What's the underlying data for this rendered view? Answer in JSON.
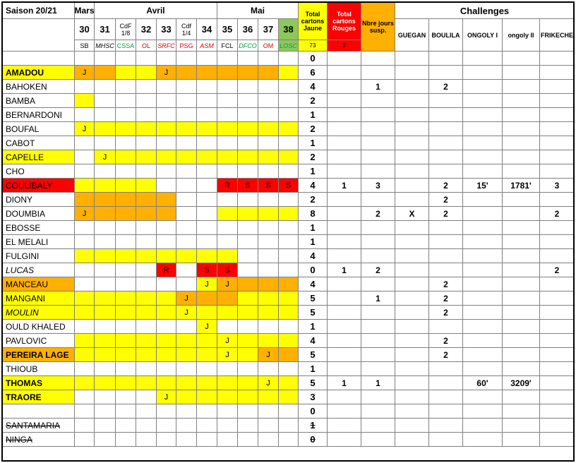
{
  "season_label": "Saison 20/21",
  "months": [
    {
      "label": "Mars",
      "color": "#000000"
    },
    {
      "label": "Avril",
      "color": "#000000"
    },
    {
      "label": "Mai",
      "color": "#000000"
    }
  ],
  "headers": {
    "total_jaune": "Total cartons Jaune",
    "total_rouge": "Total cartons Rouges",
    "jours_susp": "Nbre jours susp.",
    "challenges": "Challenges",
    "challenge_names": [
      "GUEGAN",
      "BOULILA",
      "ONGOLY I",
      "ongoly II",
      "FRIKECHE"
    ],
    "total_jaune_count": "73",
    "total_rouge_count": "3"
  },
  "matchdays": [
    {
      "num": "30",
      "opp": "SB",
      "opp_color": "#000000",
      "opp_italic": false
    },
    {
      "num": "31",
      "opp": "MHSC",
      "opp_color": "#000000",
      "opp_italic": true
    },
    {
      "num": "CdF 1/8",
      "opp": "CSSA",
      "opp_color": "#00A050",
      "opp_italic": false
    },
    {
      "num": "32",
      "opp": "OL",
      "opp_color": "#E00000",
      "opp_italic": false
    },
    {
      "num": "33",
      "opp": "SRFC",
      "opp_color": "#E00000",
      "opp_italic": true
    },
    {
      "num": "Cdf 1/4",
      "opp": "PSG",
      "opp_color": "#E00000",
      "opp_italic": false
    },
    {
      "num": "34",
      "opp": "ASM",
      "opp_color": "#E00000",
      "opp_italic": true
    },
    {
      "num": "35",
      "opp": "FCL",
      "opp_color": "#000000",
      "opp_italic": false
    },
    {
      "num": "36",
      "opp": "DFCO",
      "opp_color": "#00A050",
      "opp_italic": true
    },
    {
      "num": "37",
      "opp": "OM",
      "opp_color": "#E00000",
      "opp_italic": false
    },
    {
      "num": "38",
      "opp": "LOSC",
      "opp_color": "#00A050",
      "opp_italic": true
    }
  ],
  "colors": {
    "yellow": "#FFFF00",
    "orange": "#FFB000",
    "red": "#FF0000",
    "green": "#8DC85A",
    "white": "#FFFFFF"
  },
  "players": [
    {
      "name": "",
      "fill": "",
      "cells": [
        "",
        "",
        "",
        "",
        "",
        "",
        "",
        "",
        "",
        "",
        ""
      ],
      "marks": {},
      "jaune": "0",
      "rouge": "",
      "susp": "",
      "ch": [
        "",
        "",
        "",
        "",
        ""
      ]
    },
    {
      "name": "AMADOU",
      "fill": "yellow",
      "bold": true,
      "cells": [
        "orange",
        "orange",
        "yellow",
        "yellow",
        "orange",
        "orange",
        "orange",
        "orange",
        "orange",
        "orange",
        "yellow"
      ],
      "marks": {
        "0": "J",
        "4": "J"
      },
      "jaune": "6",
      "rouge": "",
      "susp": "",
      "ch": [
        "",
        "",
        "",
        "",
        ""
      ]
    },
    {
      "name": "BAHOKEN",
      "fill": "",
      "cells": [
        "",
        "",
        "",
        "",
        "",
        "",
        "",
        "",
        "",
        "",
        ""
      ],
      "marks": {},
      "jaune": "4",
      "rouge": "",
      "susp": "1",
      "ch": [
        "",
        "2",
        "",
        "",
        ""
      ]
    },
    {
      "name": "BAMBA",
      "fill": "",
      "cells": [
        "yellow",
        "",
        "",
        "",
        "",
        "",
        "",
        "",
        "",
        "",
        ""
      ],
      "marks": {},
      "jaune": "2",
      "rouge": "",
      "susp": "",
      "ch": [
        "",
        "",
        "",
        "",
        ""
      ]
    },
    {
      "name": "BERNARDONI",
      "fill": "",
      "cells": [
        "",
        "",
        "",
        "",
        "",
        "",
        "",
        "",
        "",
        "",
        ""
      ],
      "marks": {},
      "jaune": "1",
      "rouge": "",
      "susp": "",
      "ch": [
        "",
        "",
        "",
        "",
        ""
      ]
    },
    {
      "name": "BOUFAL",
      "fill": "",
      "cells": [
        "yellow",
        "yellow",
        "yellow",
        "yellow",
        "yellow",
        "yellow",
        "yellow",
        "yellow",
        "yellow",
        "yellow",
        "yellow"
      ],
      "marks": {
        "0": "J"
      },
      "jaune": "2",
      "rouge": "",
      "susp": "",
      "ch": [
        "",
        "",
        "",
        "",
        ""
      ]
    },
    {
      "name": "CABOT",
      "fill": "",
      "cells": [
        "",
        "",
        "",
        "",
        "",
        "",
        "",
        "",
        "",
        "",
        ""
      ],
      "marks": {},
      "jaune": "1",
      "rouge": "",
      "susp": "",
      "ch": [
        "",
        "",
        "",
        "",
        ""
      ]
    },
    {
      "name": "CAPELLE",
      "fill": "yellow",
      "cells": [
        "",
        "yellow",
        "yellow",
        "yellow",
        "yellow",
        "yellow",
        "yellow",
        "yellow",
        "yellow",
        "yellow",
        "yellow"
      ],
      "marks": {
        "1": "J"
      },
      "jaune": "2",
      "rouge": "",
      "susp": "",
      "ch": [
        "",
        "",
        "",
        "",
        ""
      ]
    },
    {
      "name": "CHO",
      "fill": "",
      "cells": [
        "",
        "",
        "",
        "",
        "",
        "",
        "",
        "",
        "",
        "",
        ""
      ],
      "marks": {},
      "jaune": "1",
      "rouge": "",
      "susp": "",
      "ch": [
        "",
        "",
        "",
        "",
        ""
      ]
    },
    {
      "name": "COULIBALY",
      "fill": "red",
      "cells": [
        "yellow",
        "yellow",
        "yellow",
        "yellow",
        "",
        "",
        "",
        "red",
        "red",
        "red",
        "red"
      ],
      "marks": {
        "7": "R",
        "8": "S",
        "9": "S",
        "10": "S"
      },
      "jaune": "4",
      "rouge": "1",
      "susp": "3",
      "ch": [
        "",
        "2",
        "15'",
        "1781'",
        "3"
      ]
    },
    {
      "name": "DIONY",
      "fill": "",
      "cells": [
        "orange",
        "orange",
        "orange",
        "orange",
        "orange",
        "",
        "",
        "",
        "",
        "",
        ""
      ],
      "marks": {},
      "jaune": "2",
      "rouge": "",
      "susp": "",
      "ch": [
        "",
        "2",
        "",
        "",
        ""
      ]
    },
    {
      "name": "DOUMBIA",
      "fill": "",
      "cells": [
        "orange",
        "orange",
        "orange",
        "orange",
        "orange",
        "",
        "",
        "yellow",
        "yellow",
        "yellow",
        "yellow"
      ],
      "marks": {
        "0": "J"
      },
      "jaune": "8",
      "rouge": "",
      "susp": "2",
      "ch": [
        "X",
        "2",
        "",
        "",
        "2"
      ]
    },
    {
      "name": "EBOSSE",
      "fill": "",
      "cells": [
        "",
        "",
        "",
        "",
        "",
        "",
        "",
        "",
        "",
        "",
        ""
      ],
      "marks": {},
      "jaune": "1",
      "rouge": "",
      "susp": "",
      "ch": [
        "",
        "",
        "",
        "",
        ""
      ]
    },
    {
      "name": "EL MELALI",
      "fill": "",
      "cells": [
        "",
        "",
        "",
        "",
        "",
        "",
        "",
        "",
        "",
        "",
        ""
      ],
      "marks": {},
      "jaune": "1",
      "rouge": "",
      "susp": "",
      "ch": [
        "",
        "",
        "",
        "",
        ""
      ]
    },
    {
      "name": "FULGINI",
      "fill": "",
      "cells": [
        "yellow",
        "yellow",
        "yellow",
        "yellow",
        "yellow",
        "yellow",
        "yellow",
        "yellow",
        "",
        "",
        ""
      ],
      "marks": {},
      "jaune": "4",
      "rouge": "",
      "susp": "",
      "ch": [
        "",
        "",
        "",
        "",
        ""
      ]
    },
    {
      "name": "LUCAS",
      "fill": "",
      "italic": true,
      "cells": [
        "",
        "",
        "",
        "",
        "red",
        "",
        "red",
        "red",
        "",
        "",
        ""
      ],
      "marks": {
        "4": "R",
        "6": "S",
        "7": "S"
      },
      "jaune": "0",
      "rouge": "1",
      "susp": "2",
      "ch": [
        "",
        "",
        "",
        "",
        "2"
      ]
    },
    {
      "name": "MANCEAU",
      "fill": "orange",
      "cells": [
        "",
        "",
        "",
        "",
        "",
        "",
        "yellow",
        "orange",
        "orange",
        "orange",
        "orange"
      ],
      "marks": {
        "6": "J",
        "7": "J"
      },
      "jaune": "4",
      "rouge": "",
      "susp": "",
      "ch": [
        "",
        "2",
        "",
        "",
        ""
      ]
    },
    {
      "name": "MANGANI",
      "fill": "yellow",
      "cells": [
        "yellow",
        "yellow",
        "yellow",
        "yellow",
        "yellow",
        "orange",
        "orange",
        "orange",
        "yellow",
        "yellow",
        "yellow"
      ],
      "marks": {
        "5": "J"
      },
      "jaune": "5",
      "rouge": "",
      "susp": "1",
      "ch": [
        "",
        "2",
        "",
        "",
        ""
      ]
    },
    {
      "name": "MOULIN",
      "fill": "yellow",
      "italic": true,
      "cells": [
        "yellow",
        "yellow",
        "yellow",
        "yellow",
        "yellow",
        "yellow",
        "yellow",
        "yellow",
        "yellow",
        "yellow",
        "yellow"
      ],
      "marks": {
        "5": "J"
      },
      "jaune": "5",
      "rouge": "",
      "susp": "",
      "ch": [
        "",
        "2",
        "",
        "",
        ""
      ]
    },
    {
      "name": "OULD KHALED",
      "fill": "",
      "cells": [
        "",
        "",
        "",
        "",
        "",
        "",
        "yellow",
        "",
        "",
        "",
        ""
      ],
      "marks": {
        "6": "J"
      },
      "jaune": "1",
      "rouge": "",
      "susp": "",
      "ch": [
        "",
        "",
        "",
        "",
        ""
      ]
    },
    {
      "name": "PAVLOVIC",
      "fill": "",
      "cells": [
        "yellow",
        "yellow",
        "yellow",
        "yellow",
        "yellow",
        "yellow",
        "yellow",
        "yellow",
        "yellow",
        "yellow",
        "yellow"
      ],
      "marks": {
        "7": "J"
      },
      "jaune": "4",
      "rouge": "",
      "susp": "",
      "ch": [
        "",
        "2",
        "",
        "",
        ""
      ]
    },
    {
      "name": "PEREIRA LAGE",
      "fill": "orange",
      "bold": true,
      "cells": [
        "yellow",
        "yellow",
        "yellow",
        "yellow",
        "yellow",
        "yellow",
        "yellow",
        "yellow",
        "yellow",
        "orange",
        "orange"
      ],
      "marks": {
        "7": "J",
        "9": "J"
      },
      "jaune": "5",
      "rouge": "",
      "susp": "",
      "ch": [
        "",
        "2",
        "",
        "",
        ""
      ]
    },
    {
      "name": "THIOUB",
      "fill": "",
      "cells": [
        "",
        "",
        "",
        "",
        "",
        "",
        "",
        "",
        "",
        "",
        ""
      ],
      "marks": {},
      "jaune": "1",
      "rouge": "",
      "susp": "",
      "ch": [
        "",
        "",
        "",
        "",
        ""
      ]
    },
    {
      "name": "THOMAS",
      "fill": "yellow",
      "bold": true,
      "cells": [
        "yellow",
        "yellow",
        "yellow",
        "yellow",
        "yellow",
        "yellow",
        "yellow",
        "yellow",
        "yellow",
        "yellow",
        "yellow"
      ],
      "marks": {
        "9": "J"
      },
      "jaune": "5",
      "rouge": "1",
      "susp": "1",
      "ch": [
        "",
        "",
        "60'",
        "3209'",
        ""
      ]
    },
    {
      "name": "TRAORE",
      "fill": "yellow",
      "bold": true,
      "cells": [
        "",
        "",
        "",
        "",
        "yellow",
        "yellow",
        "yellow",
        "yellow",
        "yellow",
        "yellow",
        "yellow"
      ],
      "marks": {
        "4": "J"
      },
      "jaune": "3",
      "rouge": "",
      "susp": "",
      "ch": [
        "",
        "",
        "",
        "",
        ""
      ]
    },
    {
      "name": "",
      "fill": "",
      "cells": [
        "",
        "",
        "",
        "",
        "",
        "",
        "",
        "",
        "",
        "",
        ""
      ],
      "marks": {},
      "jaune": "0",
      "rouge": "",
      "susp": "",
      "ch": [
        "",
        "",
        "",
        "",
        ""
      ]
    },
    {
      "name": "SANTAMARIA",
      "fill": "",
      "strike": true,
      "cells": [
        "",
        "",
        "",
        "",
        "",
        "",
        "",
        "",
        "",
        "",
        ""
      ],
      "marks": {},
      "jaune": "1",
      "jaune_strike": true,
      "rouge": "",
      "susp": "",
      "ch": [
        "",
        "",
        "",
        "",
        ""
      ]
    },
    {
      "name": "NINGA",
      "fill": "",
      "strike": true,
      "cells": [
        "",
        "",
        "",
        "",
        "",
        "",
        "",
        "",
        "",
        "",
        ""
      ],
      "marks": {},
      "jaune": "0",
      "jaune_strike": true,
      "rouge": "",
      "susp": "",
      "ch": [
        "",
        "",
        "",
        "",
        ""
      ]
    }
  ]
}
